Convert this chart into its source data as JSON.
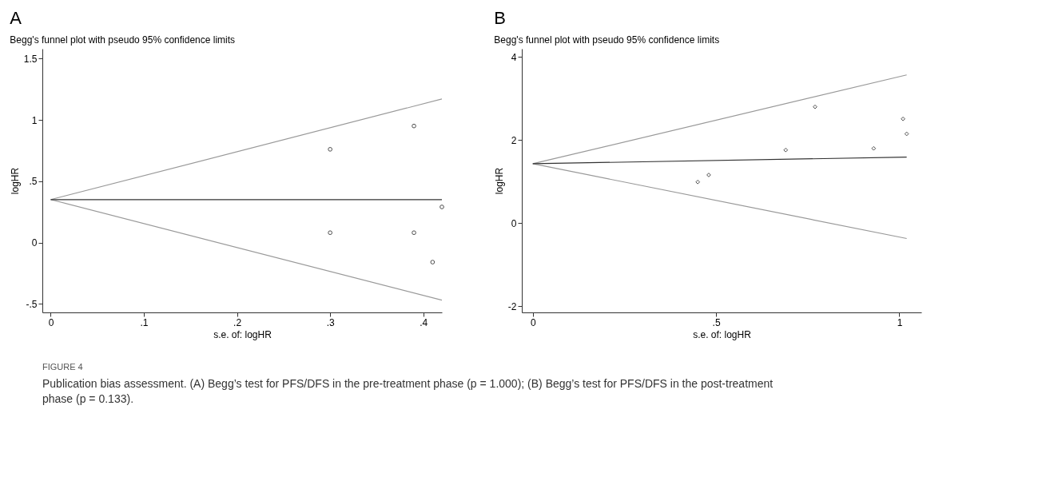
{
  "chart_data": [
    {
      "type": "scatter",
      "title": "Begg's funnel plot with pseudo 95% confidence limits",
      "xlabel": "s.e. of: logHR",
      "ylabel": "logHR",
      "annotations": [
        "A",
        "FIGURE 4",
        "Publication bias assessment. (A) Begg’s test for PFS/DFS in the pre-treatment phase (p = 1.000); (B) Begg’s test for PFS/DFS in the post-treatment phase (p = 0.133)."
      ],
      "xlim": [
        -0.009,
        0.42
      ],
      "xticks": [
        0,
        {
          "value": 0.1,
          "label": ".1"
        },
        {
          "value": 0.2,
          "label": ".2"
        },
        {
          "value": 0.3,
          "label": ".3"
        },
        {
          "value": 0.4,
          "label": ".4"
        }
      ],
      "ylim": [
        -0.57,
        1.58
      ],
      "yticks": [
        {
          "value": -0.5,
          "label": "-.5"
        },
        0,
        {
          "value": 0.5,
          "label": ".5"
        },
        1,
        1.5
      ],
      "grid": false,
      "legend": false,
      "marker": "circle",
      "series": [
        {
          "type": "line",
          "marker": "none",
          "color": "#999999",
          "x": [
            0,
            0.42
          ],
          "values": [
            0.35,
            1.17
          ]
        },
        {
          "type": "line",
          "marker": "none",
          "color": "#999999",
          "x": [
            0,
            0.42
          ],
          "values": [
            0.35,
            -0.47
          ]
        },
        {
          "type": "line",
          "marker": "none",
          "color": "#333333",
          "x": [
            0,
            0.42
          ],
          "values": [
            0.35,
            0.35
          ]
        },
        {
          "color": "#000000",
          "x": [
            0.3,
            0.39,
            0.3,
            0.39,
            0.42,
            0.41
          ],
          "values": [
            0.76,
            0.95,
            0.08,
            0.08,
            0.29,
            -0.16
          ]
        }
      ]
    },
    {
      "type": "scatter",
      "title": "Begg's funnel plot with pseudo 95% confidence limits",
      "xlabel": "s.e. of: logHR",
      "ylabel": "logHR",
      "annotations": [
        "B"
      ],
      "xlim": [
        -0.03,
        1.06
      ],
      "xticks": [
        0,
        {
          "value": 0.5,
          "label": ".5"
        },
        1
      ],
      "ylim": [
        -2.15,
        4.2
      ],
      "yticks": [
        -2,
        0,
        2,
        4
      ],
      "grid": false,
      "legend": false,
      "marker": "diamond",
      "series": [
        {
          "type": "line",
          "marker": "none",
          "color": "#999999",
          "x": [
            0,
            1.02
          ],
          "values": [
            1.43,
            3.57
          ]
        },
        {
          "type": "line",
          "marker": "none",
          "color": "#999999",
          "x": [
            0,
            1.02
          ],
          "values": [
            1.43,
            -0.37
          ]
        },
        {
          "type": "line",
          "marker": "none",
          "color": "#333333",
          "x": [
            0,
            1.02
          ],
          "values": [
            1.43,
            1.59
          ]
        },
        {
          "color": "#000000",
          "x": [
            0.45,
            0.48,
            0.69,
            0.77,
            0.93,
            1.01,
            1.02
          ],
          "values": [
            0.99,
            1.16,
            1.76,
            2.8,
            1.8,
            2.51,
            2.15
          ]
        }
      ]
    }
  ]
}
